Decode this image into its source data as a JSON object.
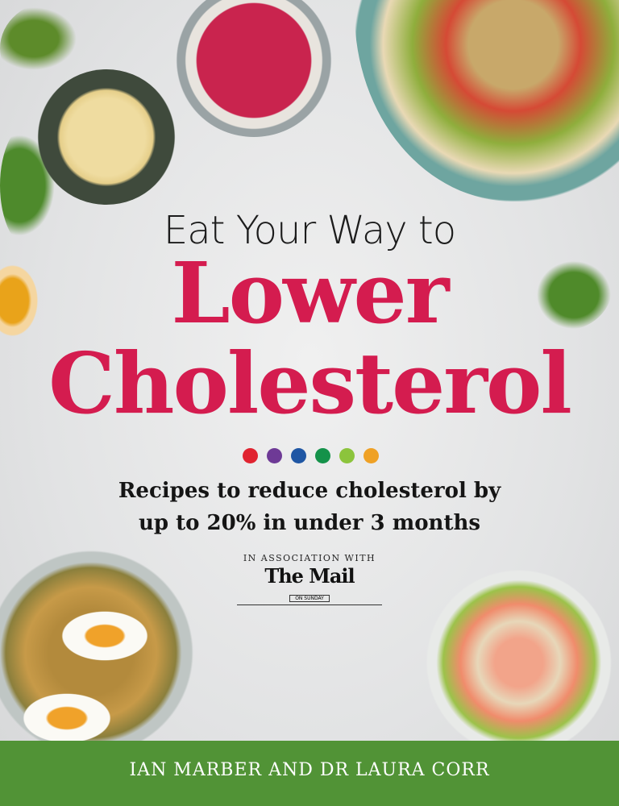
{
  "cover": {
    "pre_title": "Eat Your Way to",
    "title_line1": "Lower",
    "title_line2": "Cholesterol",
    "title_color": "#d41c4f",
    "dot_colors": [
      "#e02330",
      "#6e3a96",
      "#1f56a4",
      "#14924a",
      "#8cc43c",
      "#efa125"
    ],
    "subtitle_line1": "Recipes to reduce cholesterol by",
    "subtitle_line2": "up to 20% in under 3 months",
    "association": "IN ASSOCIATION WITH",
    "logo_text": "The Mail",
    "logo_sub": "ON SUNDAY",
    "authors": "IAN MARBER AND DR LAURA CORR",
    "band_color": "#519336"
  }
}
